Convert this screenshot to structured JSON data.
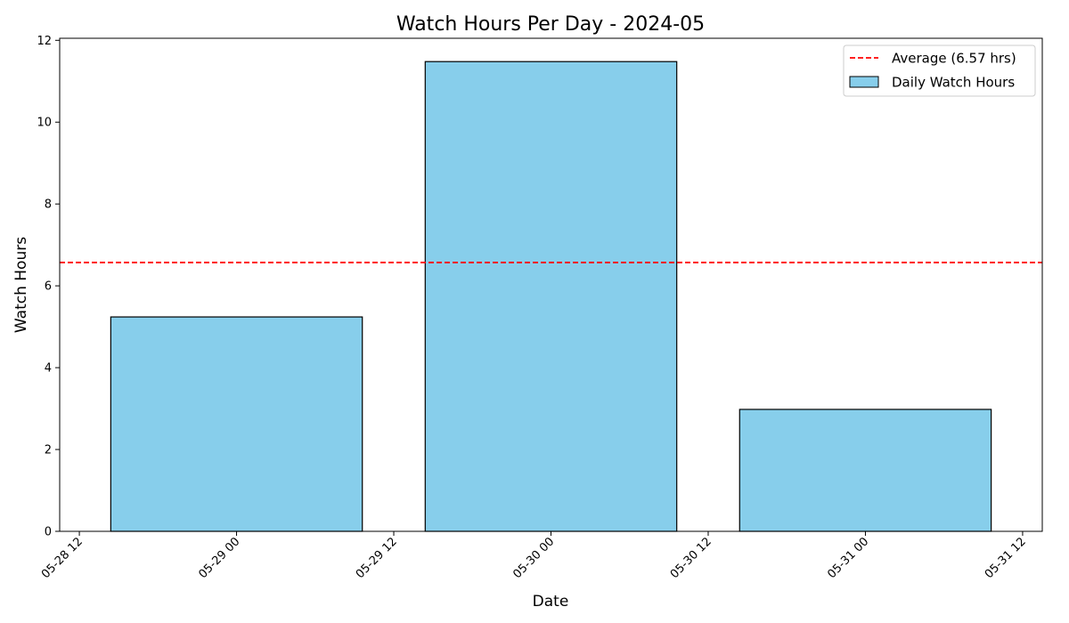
{
  "chart_data": {
    "type": "bar",
    "title": "Watch Hours Per Day - 2024-05",
    "xlabel": "Date",
    "ylabel": "Watch Hours",
    "x_axis_kind": "datetime",
    "xlim": [
      "2024-05-28T10:30",
      "2024-05-31T13:30"
    ],
    "ylim": [
      0,
      12.05
    ],
    "x_ticks": [
      {
        "value": "2024-05-28T12:00",
        "label": "05-28 12"
      },
      {
        "value": "2024-05-29T00:00",
        "label": "05-29 00"
      },
      {
        "value": "2024-05-29T12:00",
        "label": "05-29 12"
      },
      {
        "value": "2024-05-30T00:00",
        "label": "05-30 00"
      },
      {
        "value": "2024-05-30T12:00",
        "label": "05-30 12"
      },
      {
        "value": "2024-05-31T00:00",
        "label": "05-31 00"
      },
      {
        "value": "2024-05-31T12:00",
        "label": "05-31 12"
      }
    ],
    "y_ticks": [
      0,
      2,
      4,
      6,
      8,
      10,
      12
    ],
    "categories": [
      "2024-05-29",
      "2024-05-30",
      "2024-05-31"
    ],
    "bar_width_days": 0.8,
    "series": [
      {
        "name": "Daily Watch Hours",
        "values": [
          5.24,
          11.48,
          2.98
        ],
        "color": "#87ceeb",
        "edge_color": "#000000"
      }
    ],
    "reference_lines": [
      {
        "name": "Average (6.57 hrs)",
        "y": 6.57,
        "color": "#ff0000",
        "style": "dashed"
      }
    ],
    "legend": {
      "placement": "top-right",
      "entries": [
        "Average (6.57 hrs)",
        "Daily Watch Hours"
      ]
    },
    "grid": false
  }
}
